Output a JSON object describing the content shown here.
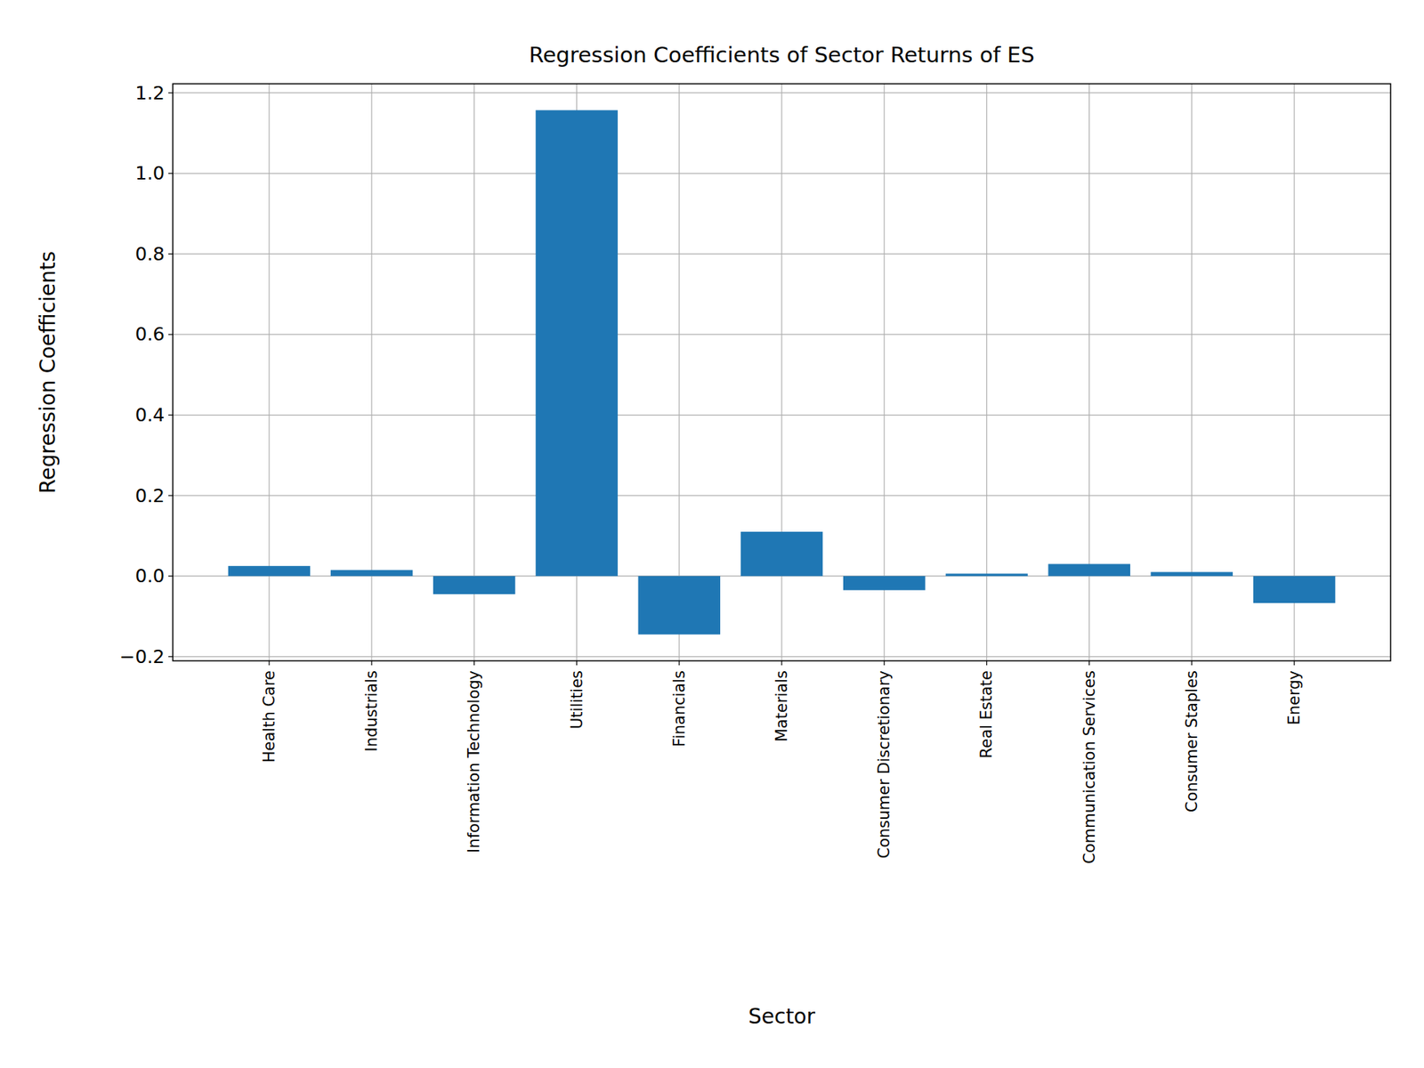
{
  "chart_data": {
    "type": "bar",
    "title": "Regression Coefficients of Sector Returns of ES",
    "x_label": "Sector",
    "y_label": "Regression Coefficients",
    "categories": [
      "Health Care",
      "Industrials",
      "Information Technology",
      "Utilities",
      "Financials",
      "Materials",
      "Consumer Discretionary",
      "Real Estate",
      "Communication Services",
      "Consumer Staples",
      "Energy"
    ],
    "values": [
      0.025,
      0.015,
      -0.045,
      1.157,
      -0.145,
      0.11,
      -0.035,
      0.006,
      0.03,
      0.01,
      -0.067
    ],
    "color": "#1f77b4",
    "ylim": [
      -0.2105,
      1.2225
    ],
    "yticks": [
      {
        "value": -0.2,
        "label": "−0.2"
      },
      {
        "value": 0,
        "label": "0.0"
      },
      0.2,
      0.4,
      0.6,
      0.8,
      {
        "value": 1,
        "label": "1.0"
      },
      1.2
    ],
    "grid": true
  }
}
